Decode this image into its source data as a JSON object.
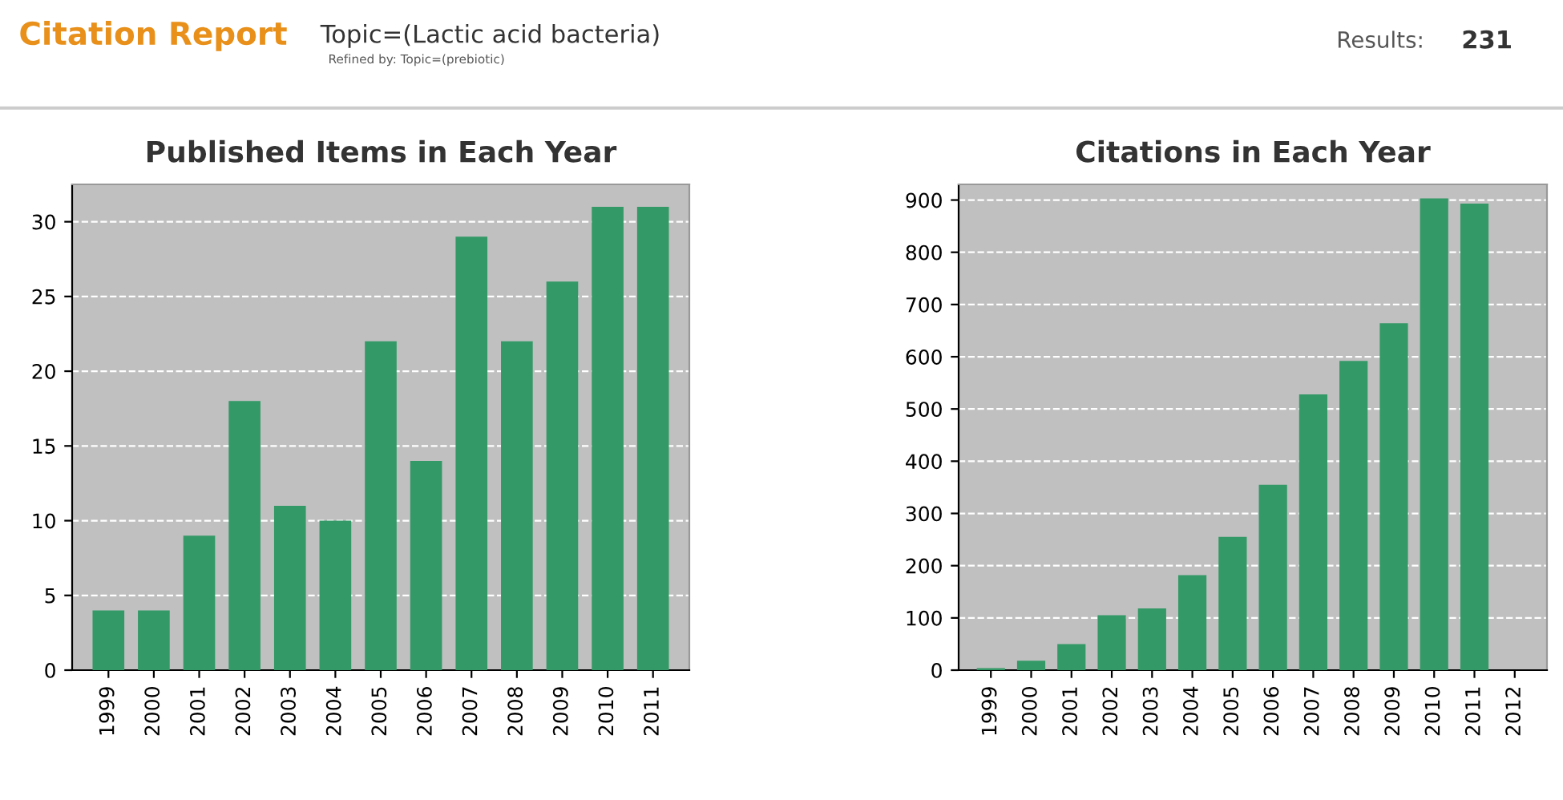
{
  "chart_data": [
    {
      "type": "bar",
      "title": "Published Items in Each Year",
      "annotations": [
        "Citation Report",
        "Topic=(Lactic acid bacteria)",
        "Refined by: Topic=(prebiotic)",
        "Results:",
        "231"
      ],
      "categories": [
        "1999",
        "2000",
        "2001",
        "2002",
        "2003",
        "2004",
        "2005",
        "2006",
        "2007",
        "2008",
        "2009",
        "2010",
        "2011"
      ],
      "values": [
        4,
        4,
        9,
        18,
        11,
        10,
        22,
        14,
        29,
        22,
        26,
        31,
        31
      ],
      "color": "#339966",
      "ylim": [
        0,
        32.5
      ],
      "yticks": [
        0,
        5,
        10,
        15,
        20,
        25,
        30
      ],
      "grid": "y"
    },
    {
      "type": "bar",
      "title": "Citations in Each Year",
      "categories": [
        "1999",
        "2000",
        "2001",
        "2002",
        "2003",
        "2004",
        "2005",
        "2006",
        "2007",
        "2008",
        "2009",
        "2010",
        "2011",
        "2012"
      ],
      "values": [
        4,
        18,
        50,
        105,
        118,
        182,
        255,
        355,
        528,
        592,
        664,
        903,
        893,
        0
      ],
      "color": "#339966",
      "ylim": [
        0,
        930
      ],
      "yticks": [
        0,
        100,
        200,
        300,
        400,
        500,
        600,
        700,
        800,
        900
      ],
      "grid": "y"
    }
  ]
}
